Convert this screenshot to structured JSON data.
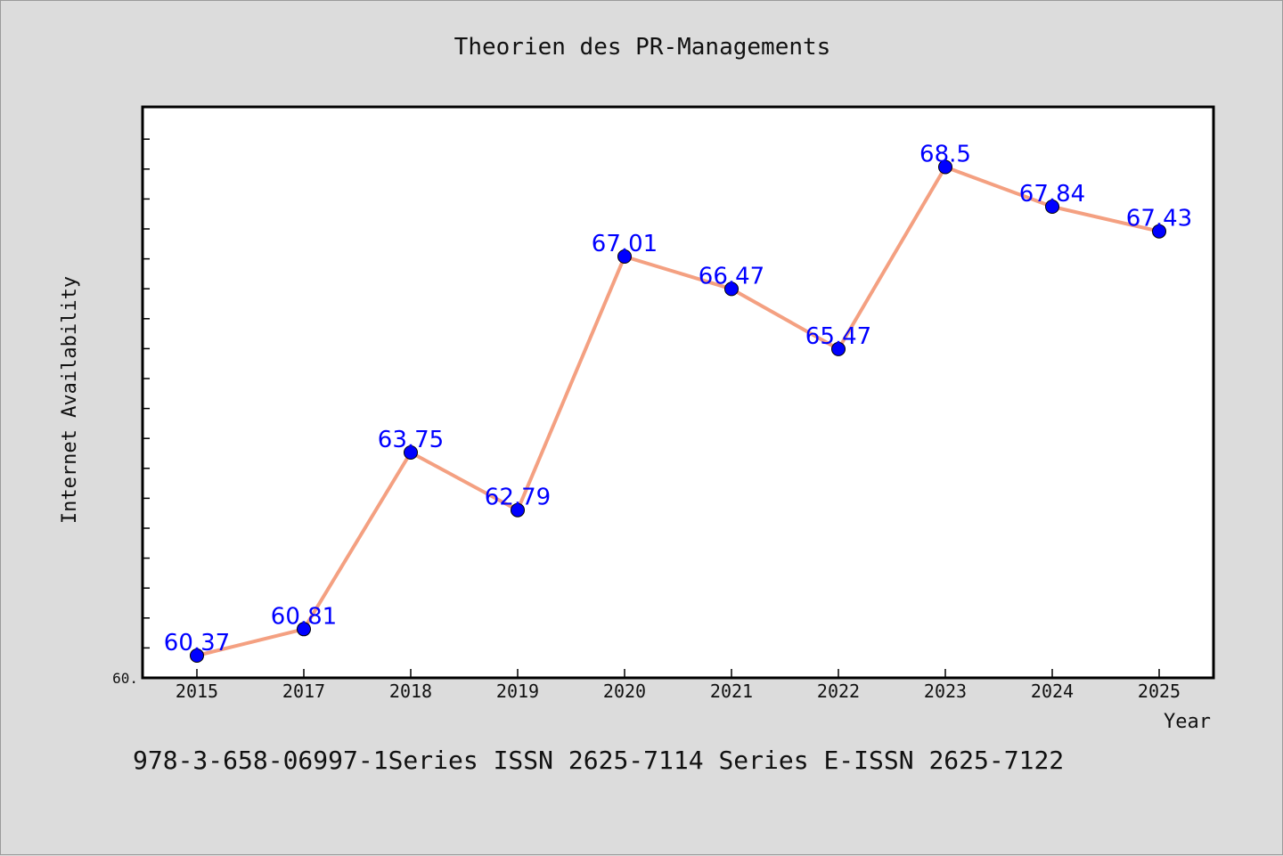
{
  "colors": {
    "background": "#dcdcdc",
    "plot_background": "#ffffff",
    "line": "#f4a081",
    "marker": "#0000ff",
    "data_label": "#0000ff"
  },
  "chart_data": {
    "type": "line",
    "title": "Theorien des PR-Managements",
    "xlabel": "Year",
    "ylabel": "Internet Availability",
    "categories": [
      "2015",
      "2017",
      "2018",
      "2019",
      "2020",
      "2021",
      "2022",
      "2023",
      "2024",
      "2025"
    ],
    "series": [
      {
        "values": [
          60.37,
          60.81,
          63.75,
          62.79,
          67.01,
          66.47,
          65.47,
          68.5,
          67.84,
          67.43
        ],
        "labels": [
          "60.37",
          "60.81",
          "63.75",
          "62.79",
          "67.01",
          "66.47",
          "65.47",
          "68.5",
          "67.84",
          "67.43"
        ]
      }
    ],
    "ylim": [
      60.0,
      69.5
    ],
    "ytick_label": "60.",
    "grid": false,
    "legend": "none"
  },
  "footer_text": "978-3-658-06997-1Series ISSN 2625-7114 Series E-ISSN 2625-7122"
}
